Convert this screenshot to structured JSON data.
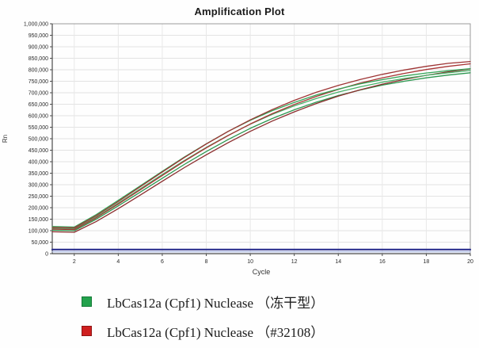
{
  "chart": {
    "title": "Amplification Plot"
  },
  "chart_data": {
    "type": "line",
    "title": "Amplification Plot",
    "xlabel": "Cycle",
    "ylabel": "Rn",
    "xlim": [
      1,
      20
    ],
    "ylim": [
      0,
      1000000
    ],
    "x_ticks": [
      2,
      4,
      6,
      8,
      10,
      12,
      14,
      16,
      18,
      20
    ],
    "y_tick_step": 50000,
    "grid": true,
    "legend_position": "below-chart",
    "x": [
      1,
      2,
      3,
      4,
      5,
      6,
      7,
      8,
      9,
      10,
      11,
      12,
      13,
      14,
      15,
      16,
      17,
      18,
      19,
      20
    ],
    "series": [
      {
        "id": "lyophilized-rep3",
        "group": "LbCas12a (Cpf1) Nuclease （冻干型）",
        "color": "#2c9750",
        "width": 1.3,
        "values": [
          102000,
          100000,
          150000,
          208000,
          268000,
          328000,
          388000,
          444000,
          497000,
          545000,
          588000,
          626000,
          659000,
          688000,
          712000,
          733000,
          750000,
          765000,
          777000,
          787000
        ]
      },
      {
        "id": "32108-rep3",
        "group": "LbCas12a (Cpf1) Nuclease （#32108）",
        "color": "#8b2d2d",
        "width": 1.3,
        "values": [
          95000,
          93000,
          140000,
          196000,
          255000,
          315000,
          374000,
          430000,
          483000,
          532000,
          577000,
          617000,
          653000,
          685000,
          713000,
          737000,
          758000,
          776000,
          791000,
          804000
        ]
      },
      {
        "id": "lyophilized-rep2",
        "group": "LbCas12a (Cpf1) Nuclease （冻干型）",
        "color": "#49b169",
        "width": 1.3,
        "values": [
          110000,
          108000,
          160000,
          220000,
          282000,
          344000,
          405000,
          462000,
          515000,
          563000,
          606000,
          643000,
          675000,
          703000,
          726000,
          746000,
          762000,
          776000,
          787000,
          797000
        ]
      },
      {
        "id": "32108-rep2",
        "group": "LbCas12a (Cpf1) Nuclease （#32108）",
        "color": "#a83434",
        "width": 1.3,
        "values": [
          107000,
          105000,
          156000,
          216000,
          278000,
          340000,
          402000,
          460000,
          514000,
          564000,
          609000,
          649000,
          684000,
          715000,
          742000,
          765000,
          784000,
          801000,
          815000,
          826000
        ]
      },
      {
        "id": "lyophilized-rep1",
        "group": "LbCas12a (Cpf1) Nuclease （冻干型）",
        "color": "#33a457",
        "width": 1.3,
        "values": [
          118000,
          116000,
          170000,
          232000,
          295000,
          358000,
          420000,
          478000,
          532000,
          580000,
          622000,
          658000,
          690000,
          716000,
          739000,
          757000,
          773000,
          786000,
          796000,
          805000
        ]
      },
      {
        "id": "32108-rep1",
        "group": "LbCas12a (Cpf1) Nuclease （#32108）",
        "color": "#9e3434",
        "width": 1.3,
        "values": [
          114000,
          112000,
          165000,
          227000,
          291000,
          355000,
          418000,
          477000,
          532000,
          582000,
          627000,
          667000,
          702000,
          732000,
          758000,
          780000,
          799000,
          815000,
          828000,
          836000
        ]
      },
      {
        "id": "baseline-light",
        "group": "baseline",
        "color": "#9fafdf",
        "width": 1.2,
        "values": [
          8000,
          8000,
          8000,
          8000,
          8000,
          8000,
          8000,
          8000,
          8000,
          8000,
          8000,
          8000,
          8000,
          8000,
          8000,
          8000,
          8000,
          8000,
          8000,
          8000
        ]
      },
      {
        "id": "baseline-navy",
        "group": "baseline",
        "color": "#2b2f8e",
        "width": 2.2,
        "values": [
          18000,
          18000,
          18000,
          18000,
          18000,
          18000,
          18000,
          18000,
          18000,
          18000,
          18000,
          18000,
          18000,
          18000,
          18000,
          18000,
          18000,
          18000,
          18000,
          18000
        ]
      }
    ]
  },
  "legend": {
    "items": [
      {
        "label": "LbCas12a (Cpf1) Nuclease （冻干型）",
        "color": "#23a24c",
        "border": "#157a37"
      },
      {
        "label": "LbCas12a (Cpf1) Nuclease （#32108）",
        "color": "#cf1f1f",
        "border": "#8f1515"
      }
    ]
  }
}
